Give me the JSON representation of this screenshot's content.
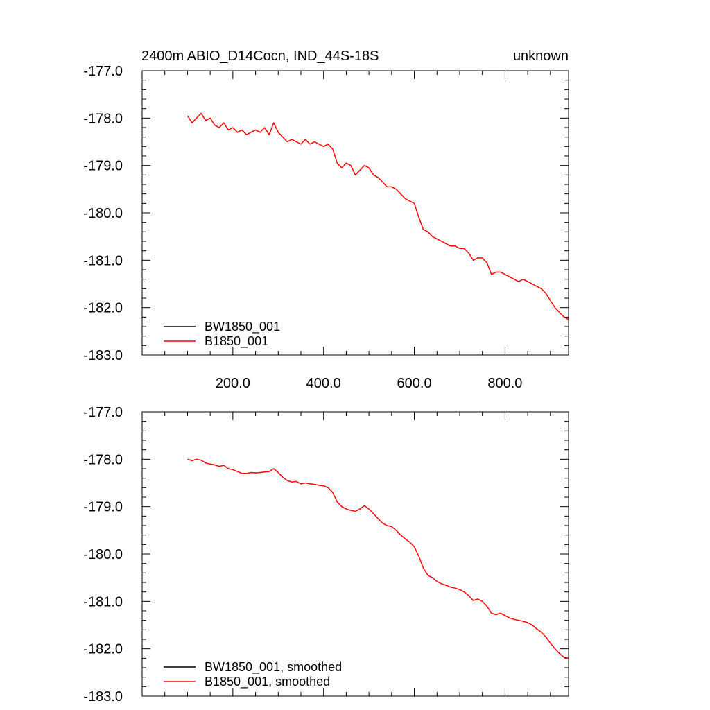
{
  "chart_data": [
    {
      "type": "line",
      "title_left": "2400m ABIO_D14Cocn, IND_44S-18S",
      "title_right": "unknown",
      "xlim": [
        0,
        940
      ],
      "ylim": [
        -183.0,
        -177.0
      ],
      "x_ticks": [
        200.0,
        400.0,
        600.0,
        800.0
      ],
      "x_tick_labels": [
        "200.0",
        "400.0",
        "600.0",
        "800.0"
      ],
      "y_ticks": [
        -177.0,
        -178.0,
        -179.0,
        -180.0,
        -181.0,
        -182.0,
        -183.0
      ],
      "y_tick_labels": [
        "-177.0",
        "-178.0",
        "-179.0",
        "-180.0",
        "-181.0",
        "-182.0",
        "-183.0"
      ],
      "legend_placement": "bottom-left",
      "series": [
        {
          "name": "BW1850_001",
          "color": "#000000",
          "x": [],
          "y": []
        },
        {
          "name": "B1850_001",
          "color": "#ff0000",
          "x": [
            100,
            110,
            120,
            130,
            140,
            150,
            160,
            170,
            180,
            190,
            200,
            210,
            220,
            230,
            240,
            250,
            260,
            270,
            280,
            290,
            300,
            310,
            320,
            330,
            340,
            350,
            360,
            370,
            380,
            390,
            400,
            410,
            420,
            430,
            440,
            450,
            460,
            470,
            480,
            490,
            500,
            510,
            520,
            530,
            540,
            550,
            560,
            570,
            580,
            590,
            600,
            610,
            620,
            630,
            640,
            650,
            660,
            670,
            680,
            690,
            700,
            710,
            720,
            730,
            740,
            750,
            760,
            770,
            780,
            790,
            800,
            810,
            820,
            830,
            840,
            850,
            860,
            870,
            880,
            890,
            900,
            910,
            920,
            930,
            940
          ],
          "y": [
            -177.95,
            -178.1,
            -178.0,
            -177.9,
            -178.05,
            -178.0,
            -178.15,
            -178.2,
            -178.1,
            -178.25,
            -178.2,
            -178.3,
            -178.25,
            -178.35,
            -178.3,
            -178.25,
            -178.3,
            -178.2,
            -178.35,
            -178.1,
            -178.3,
            -178.4,
            -178.5,
            -178.45,
            -178.5,
            -178.55,
            -178.45,
            -178.55,
            -178.5,
            -178.55,
            -178.6,
            -178.55,
            -178.65,
            -178.95,
            -179.05,
            -178.95,
            -179.0,
            -179.2,
            -179.1,
            -179.0,
            -179.05,
            -179.2,
            -179.25,
            -179.35,
            -179.45,
            -179.45,
            -179.5,
            -179.6,
            -179.7,
            -179.75,
            -179.8,
            -180.1,
            -180.35,
            -180.4,
            -180.5,
            -180.55,
            -180.6,
            -180.65,
            -180.7,
            -180.7,
            -180.75,
            -180.75,
            -180.85,
            -181.0,
            -180.95,
            -180.95,
            -181.05,
            -181.3,
            -181.25,
            -181.25,
            -181.3,
            -181.35,
            -181.4,
            -181.45,
            -181.4,
            -181.45,
            -181.5,
            -181.55,
            -181.6,
            -181.7,
            -181.85,
            -182.0,
            -182.1,
            -182.2,
            -182.25
          ]
        }
      ]
    },
    {
      "type": "line",
      "xlim": [
        0,
        940
      ],
      "ylim": [
        -183.0,
        -177.0
      ],
      "y_ticks": [
        -177.0,
        -178.0,
        -179.0,
        -180.0,
        -181.0,
        -182.0,
        -183.0
      ],
      "y_tick_labels": [
        "-177.0",
        "-178.0",
        "-179.0",
        "-180.0",
        "-181.0",
        "-182.0",
        "-183.0"
      ],
      "legend_placement": "bottom-left",
      "series": [
        {
          "name": "BW1850_001, smoothed",
          "color": "#000000",
          "x": [],
          "y": []
        },
        {
          "name": "B1850_001, smoothed",
          "color": "#ff0000",
          "x": [
            100,
            110,
            120,
            130,
            140,
            150,
            160,
            170,
            180,
            190,
            200,
            210,
            220,
            230,
            240,
            250,
            260,
            270,
            280,
            290,
            300,
            310,
            320,
            330,
            340,
            350,
            360,
            370,
            380,
            390,
            400,
            410,
            420,
            430,
            440,
            450,
            460,
            470,
            480,
            490,
            500,
            510,
            520,
            530,
            540,
            550,
            560,
            570,
            580,
            590,
            600,
            610,
            620,
            630,
            640,
            650,
            660,
            670,
            680,
            690,
            700,
            710,
            720,
            730,
            740,
            750,
            760,
            770,
            780,
            790,
            800,
            810,
            820,
            830,
            840,
            850,
            860,
            870,
            880,
            890,
            900,
            910,
            920,
            930,
            940
          ],
          "y": [
            -178.0,
            -178.03,
            -178.0,
            -178.02,
            -178.08,
            -178.1,
            -178.12,
            -178.15,
            -178.13,
            -178.2,
            -178.22,
            -178.26,
            -178.3,
            -178.3,
            -178.28,
            -178.29,
            -178.28,
            -178.27,
            -178.26,
            -178.2,
            -178.28,
            -178.38,
            -178.45,
            -178.48,
            -178.47,
            -178.52,
            -178.5,
            -178.52,
            -178.53,
            -178.55,
            -178.56,
            -178.6,
            -178.7,
            -178.9,
            -179.0,
            -179.05,
            -179.08,
            -179.1,
            -179.05,
            -178.98,
            -179.05,
            -179.15,
            -179.25,
            -179.35,
            -179.4,
            -179.42,
            -179.5,
            -179.6,
            -179.68,
            -179.75,
            -179.85,
            -180.05,
            -180.3,
            -180.45,
            -180.5,
            -180.58,
            -180.63,
            -180.66,
            -180.7,
            -180.72,
            -180.75,
            -180.8,
            -180.88,
            -180.98,
            -180.95,
            -181.0,
            -181.1,
            -181.25,
            -181.28,
            -181.25,
            -181.3,
            -181.35,
            -181.38,
            -181.4,
            -181.42,
            -181.45,
            -181.5,
            -181.58,
            -181.65,
            -181.75,
            -181.88,
            -182.0,
            -182.1,
            -182.18,
            -182.2
          ]
        }
      ]
    }
  ]
}
